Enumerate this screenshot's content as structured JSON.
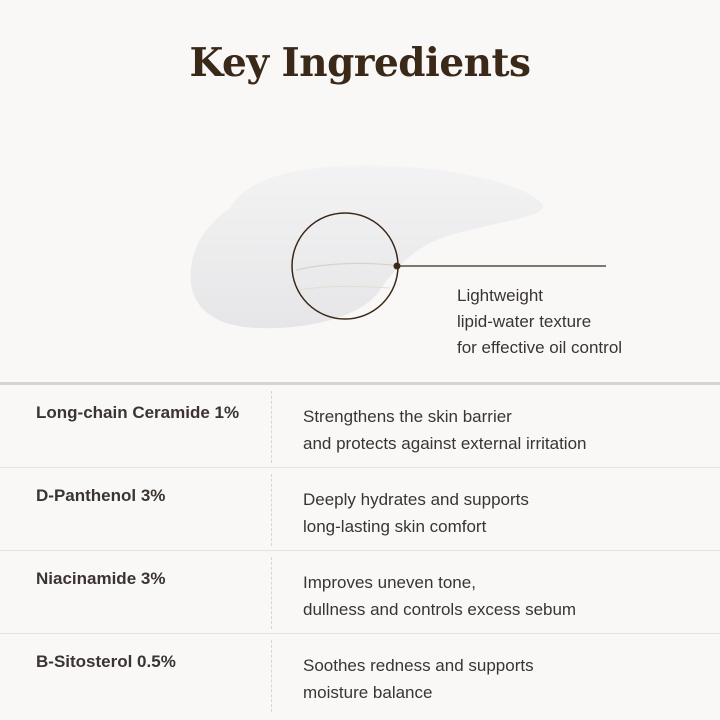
{
  "title": "Key Ingredients",
  "texture_caption": [
    "Lightweight",
    "lipid-water texture",
    "for effective oil control"
  ],
  "ingredients": [
    {
      "name": "Long-chain Ceramide 1%",
      "description": [
        "Strengthens the skin barrier",
        "and protects against external irritation"
      ]
    },
    {
      "name": "D-Panthenol 3%",
      "description": [
        "Deeply hydrates and supports",
        "long-lasting skin comfort"
      ]
    },
    {
      "name": "Niacinamide 3%",
      "description": [
        "Improves uneven tone,",
        "dullness and controls excess sebum"
      ]
    },
    {
      "name": "B-Sitosterol 0.5%",
      "description": [
        "Soothes redness and supports",
        "moisture balance"
      ]
    }
  ],
  "colors": {
    "title": "#3a2818",
    "background": "#f9f8f6",
    "accent_line": "#3a2818"
  }
}
